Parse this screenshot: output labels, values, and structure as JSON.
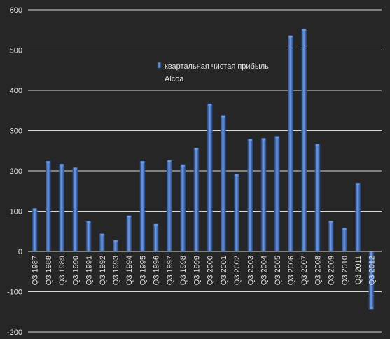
{
  "chart_data": {
    "type": "bar",
    "title": "",
    "xlabel": "",
    "ylabel": "",
    "ylim": [
      -200,
      600
    ],
    "yticks": [
      -200,
      -100,
      0,
      100,
      200,
      300,
      400,
      500,
      600
    ],
    "grid": true,
    "legend_position": "top-center",
    "categories": [
      "Q3 1987",
      "Q3 1988",
      "Q3 1989",
      "Q3 1990",
      "Q3 1991",
      "Q3 1992",
      "Q3 1993",
      "Q3 1994",
      "Q3 1995",
      "Q3 1996",
      "Q3 1997",
      "Q3 1998",
      "Q3 1999",
      "Q3 2000",
      "Q3 2001",
      "Q3 2002",
      "Q3 2003",
      "Q3 2004",
      "Q3 2005",
      "Q3 2006",
      "Q3 2007",
      "Q3 2008",
      "Q3 2009",
      "Q3 2010",
      "Q3 2011",
      "Q3 2012"
    ],
    "series": [
      {
        "name": "квартальная чистая прибыль Alcoa",
        "legend_lines": [
          "квартальная чистая прибыль",
          "Alcoa"
        ],
        "values": [
          107,
          224,
          217,
          208,
          75,
          44,
          28,
          89,
          224,
          68,
          226,
          216,
          257,
          367,
          338,
          192,
          279,
          281,
          286,
          536,
          553,
          266,
          76,
          59,
          170,
          -143
        ]
      }
    ],
    "colors": {
      "background": "#262626",
      "bar": "#3f6fbf",
      "bar_light": "#6f9be6",
      "bar_dark": "#26477f",
      "grid": "#d9d9d9",
      "text": "#e6e6e6"
    }
  }
}
